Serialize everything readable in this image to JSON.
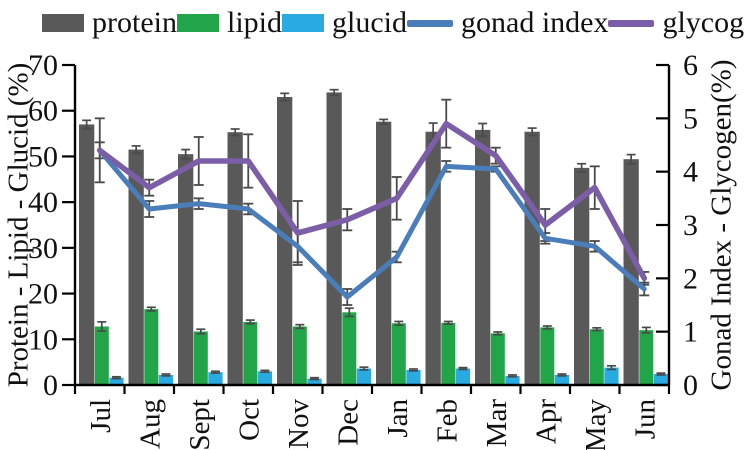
{
  "legend": {
    "items": [
      {
        "label": "protein",
        "swatch": "bar",
        "color": "#595959"
      },
      {
        "label": "lipid",
        "swatch": "bar",
        "color": "#22A449"
      },
      {
        "label": "glucid",
        "swatch": "bar",
        "color": "#29ABE2"
      },
      {
        "label": "gonad index",
        "swatch": "line",
        "color": "#4A7EBB"
      },
      {
        "label": "glycogen",
        "swatch": "line",
        "color": "#7B5EA7"
      }
    ]
  },
  "chart_data": {
    "type": "bar+line",
    "categories": [
      "Jul",
      "Aug",
      "Sept",
      "Oct",
      "Nov",
      "Dec",
      "Jan",
      "Feb",
      "Mar",
      "Apr",
      "May",
      "Jun"
    ],
    "series": [
      {
        "name": "protein",
        "type": "bar",
        "axis": "left",
        "color": "#595959",
        "values": [
          57,
          51.5,
          50.5,
          55.3,
          63,
          64,
          57.6,
          55.4,
          55.8,
          55.4,
          47.5,
          49.4
        ],
        "errors": [
          0.9,
          0.8,
          1,
          0.7,
          0.8,
          0.6,
          0.5,
          1.9,
          1.4,
          0.8,
          0.9,
          1
        ]
      },
      {
        "name": "lipid",
        "type": "bar",
        "axis": "left",
        "color": "#22A449",
        "values": [
          12.8,
          16.6,
          11.7,
          13.8,
          12.8,
          15.9,
          13.5,
          13.6,
          11.3,
          12.6,
          12.2,
          12
        ],
        "errors": [
          1,
          0.4,
          0.5,
          0.4,
          0.4,
          0.9,
          0.4,
          0.3,
          0.3,
          0.3,
          0.3,
          0.6
        ]
      },
      {
        "name": "glucid",
        "type": "bar",
        "axis": "left",
        "color": "#29ABE2",
        "values": [
          1.6,
          2.2,
          2.8,
          3,
          1.4,
          3.6,
          3.3,
          3.6,
          2,
          2.2,
          3.8,
          2.4
        ],
        "errors": [
          0.2,
          0.2,
          0.2,
          0.2,
          0.2,
          0.3,
          0.2,
          0.2,
          0.2,
          0.2,
          0.4,
          0.2
        ]
      },
      {
        "name": "gonad index",
        "type": "line",
        "axis": "right",
        "color": "#4A7EBB",
        "values": [
          4.4,
          3.3,
          3.4,
          3.3,
          2.6,
          1.65,
          2.4,
          4.1,
          4.05,
          2.75,
          2.6,
          1.8
        ],
        "errors": [
          0.15,
          0.15,
          0.1,
          0.1,
          0.3,
          0.15,
          0.1,
          0.1,
          0.05,
          0.1,
          0.1,
          0.12
        ]
      },
      {
        "name": "glycogen",
        "type": "line",
        "axis": "right",
        "color": "#7B5EA7",
        "values": [
          4.4,
          3.7,
          4.2,
          4.2,
          2.85,
          3.1,
          3.5,
          4.9,
          4.3,
          3,
          3.7,
          2
        ],
        "errors": [
          0.6,
          0.15,
          0.45,
          0.5,
          0.6,
          0.2,
          0.4,
          0.45,
          0.15,
          0.3,
          0.4,
          0.12
        ]
      }
    ],
    "left_axis": {
      "title": "Protein - Lipid - Glucid (%)",
      "min": 0,
      "max": 70,
      "step": 10,
      "tick_labels": [
        "0",
        "10",
        "20",
        "30",
        "40",
        "50",
        "60",
        "70"
      ]
    },
    "right_axis": {
      "title": "Gonad Index - Glycogen(%)",
      "min": 0,
      "max": 6,
      "step": 1,
      "tick_labels": [
        "0",
        "1",
        "2",
        "3",
        "4",
        "5",
        "6"
      ]
    },
    "title": "",
    "grid": false,
    "legend_position": "top"
  }
}
